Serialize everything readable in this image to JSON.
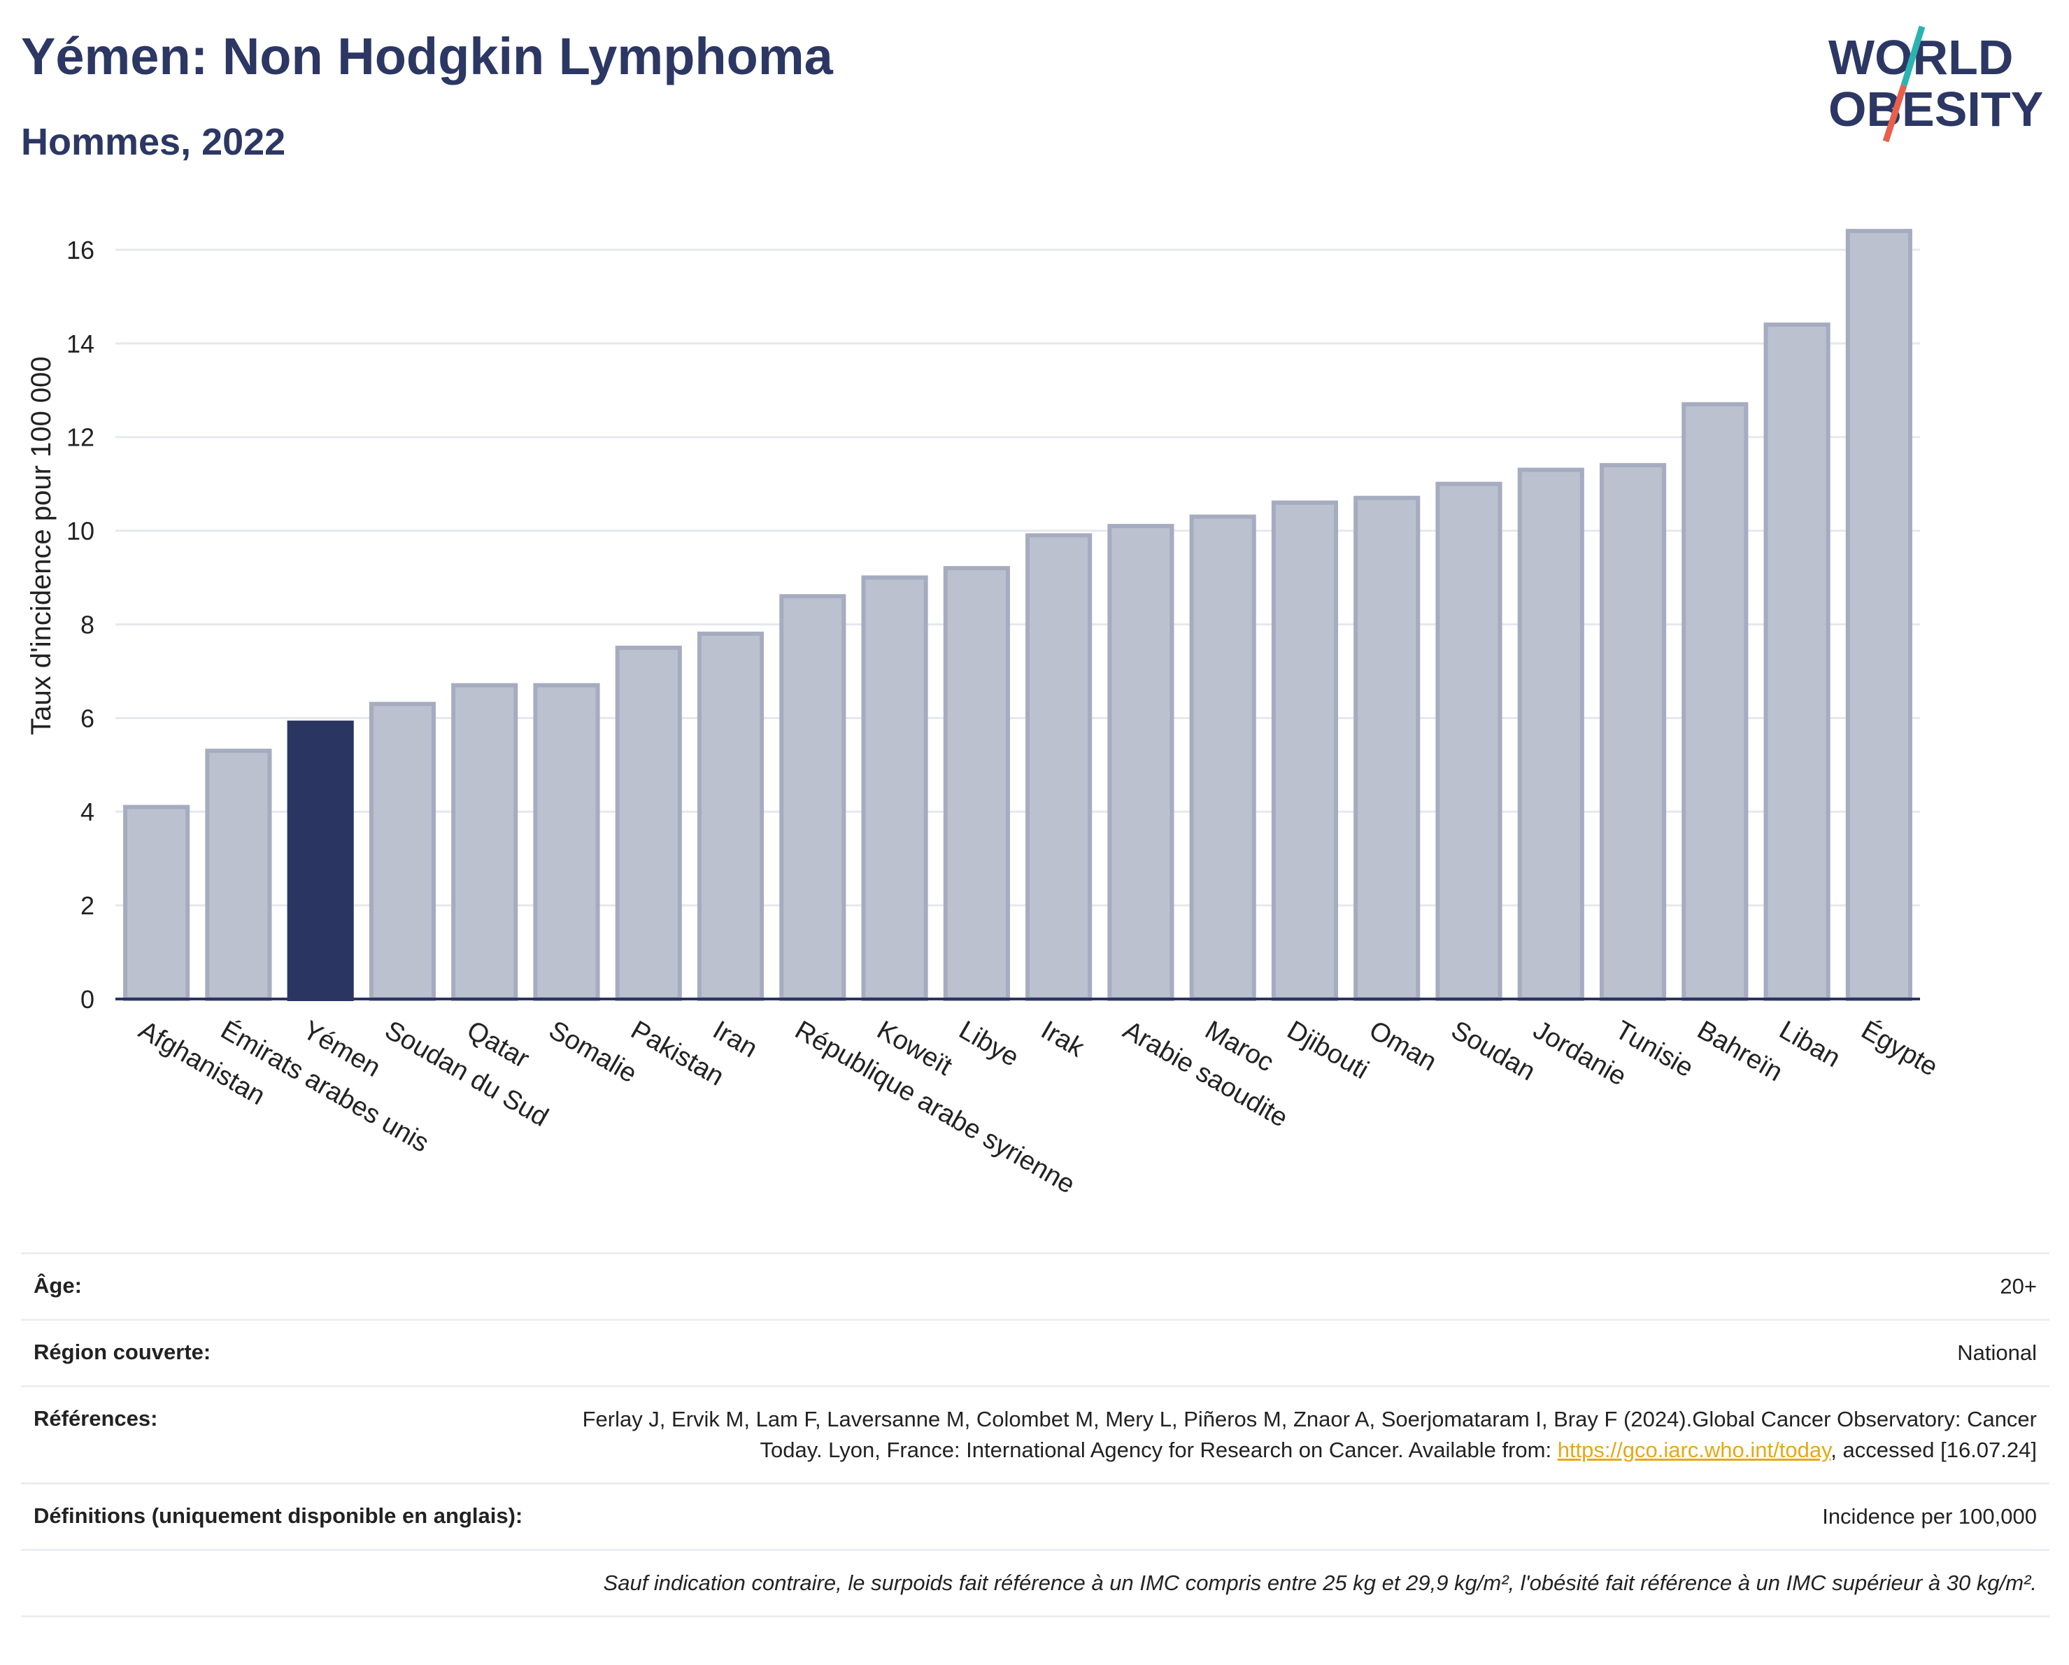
{
  "header": {
    "title": "Yémen: Non Hodgkin Lymphoma",
    "subtitle": "Hommes, 2022"
  },
  "logo": {
    "line1": "WORLD",
    "line2": "OBESITY",
    "colors": {
      "text": "#2c3763",
      "teal": "#2bb3b1",
      "red": "#e8604c"
    }
  },
  "chart_data": {
    "type": "bar",
    "title": "Yémen: Non Hodgkin Lymphoma",
    "subtitle": "Hommes, 2022",
    "ylabel": "Taux d'incidence pour 100 000",
    "xlabel": "",
    "ylim": [
      0,
      17
    ],
    "yticks": [
      0,
      2,
      4,
      6,
      8,
      10,
      12,
      14,
      16
    ],
    "grid": true,
    "highlight": "Yémen",
    "colors": {
      "bar": "#bcc1cf",
      "bar_edge": "#a6acc0",
      "highlight": "#2b3561",
      "axis": "#2b3561",
      "grid": "#e6e8ee"
    },
    "categories": [
      "Afghanistan",
      "Émirats arabes unis",
      "Yémen",
      "Soudan du Sud",
      "Qatar",
      "Somalie",
      "Pakistan",
      "Iran",
      "République arabe syrienne",
      "Koweït",
      "Libye",
      "Irak",
      "Arabie saoudite",
      "Maroc",
      "Djibouti",
      "Oman",
      "Soudan",
      "Jordanie",
      "Tunisie",
      "Bahreïn",
      "Liban",
      "Égypte"
    ],
    "values": [
      4.1,
      5.3,
      5.9,
      6.3,
      6.7,
      6.7,
      7.5,
      7.8,
      8.6,
      9.0,
      9.2,
      9.9,
      10.1,
      10.3,
      10.6,
      10.7,
      11.0,
      11.3,
      11.4,
      12.7,
      14.4,
      16.4
    ]
  },
  "meta": {
    "age": {
      "label": "Âge:",
      "value": "20+"
    },
    "region": {
      "label": "Région couverte:",
      "value": "National"
    },
    "references": {
      "label": "Références:",
      "text1": "Ferlay J, Ervik M, Lam F, Laversanne M, Colombet M, Mery L, Piñeros M, Znaor A, Soerjomataram I, Bray F (2024).Global Cancer Observatory: Cancer Today. Lyon, France: International Agency for Research on Cancer. Available from: ",
      "link": "https://gco.iarc.who.int/today",
      "text2": ", accessed [16.07.24]"
    },
    "definitions": {
      "label": "Définitions (uniquement disponible en anglais):",
      "value": "Incidence per 100,000"
    },
    "note": "Sauf indication contraire, le surpoids fait référence à un IMC compris entre 25 kg et 29,9 kg/m², l'obésité fait référence à un IMC supérieur à 30 kg/m²."
  }
}
